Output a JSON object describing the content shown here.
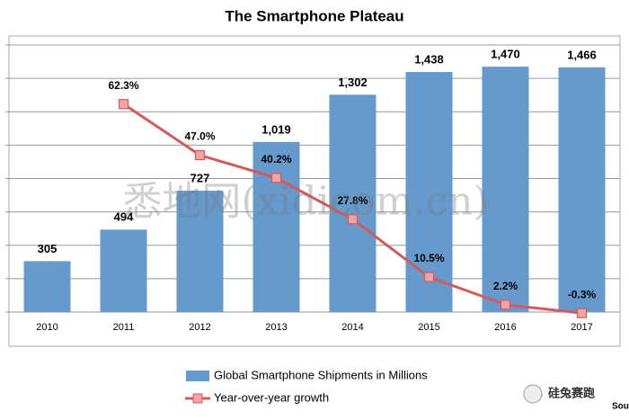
{
  "chart_data": {
    "type": "bar_line",
    "title": "The Smartphone Plateau",
    "categories": [
      "2010",
      "2011",
      "2012",
      "2013",
      "2014",
      "2015",
      "2016",
      "2017"
    ],
    "series": [
      {
        "name": "Global Smartphone Shipments in Millions",
        "type": "bar",
        "color": "#6699cc",
        "values": [
          305,
          494,
          727,
          1019,
          1302,
          1438,
          1470,
          1466
        ],
        "value_labels": [
          "305",
          "494",
          "727",
          "1,019",
          "1,302",
          "1,438",
          "1,470",
          "1,466"
        ]
      },
      {
        "name": "Year-over-year growth",
        "type": "line",
        "axis": "y2",
        "color": "#d45a5a",
        "marker_color": "#f2a3a3",
        "values": [
          null,
          62.3,
          47.0,
          40.2,
          27.8,
          10.5,
          2.2,
          -0.3
        ],
        "value_labels": [
          null,
          "62.3%",
          "47.0%",
          "40.2%",
          "27.8%",
          "10.5%",
          "2.2%",
          "-0.3%"
        ]
      }
    ],
    "ylim": [
      0,
      1600
    ],
    "yticks": [
      0,
      200,
      400,
      600,
      800,
      1000,
      1200,
      1400,
      1600
    ],
    "y2lim": [
      0,
      80
    ],
    "grid": true,
    "legend": "bottom-left",
    "watermark": "悉地网(xidicom.cn)",
    "badge": "硅兔赛跑",
    "source": "Sou"
  }
}
